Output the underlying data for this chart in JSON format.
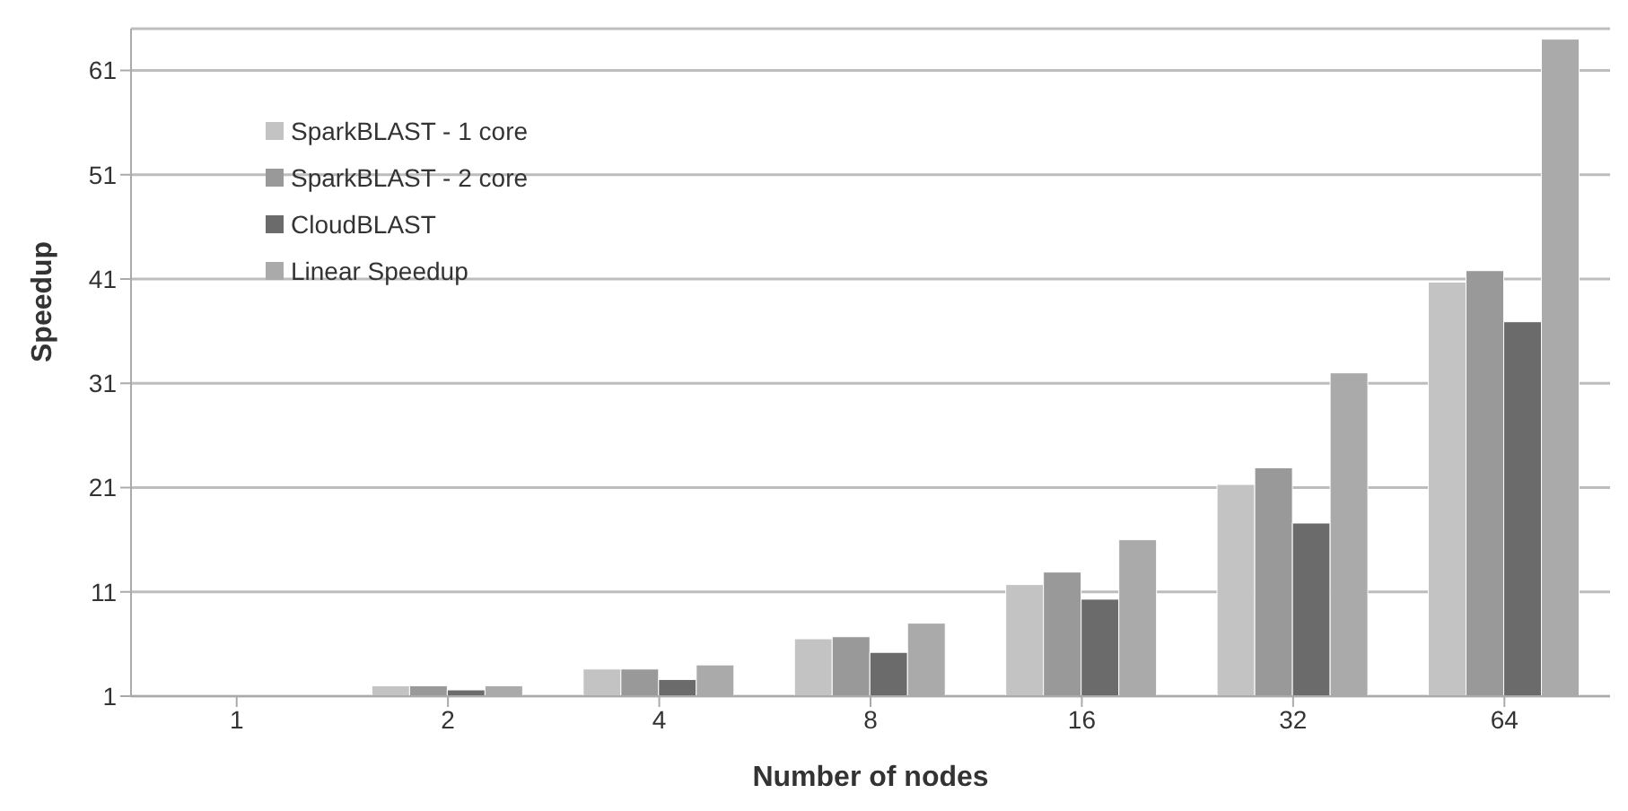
{
  "chart_data": {
    "type": "bar",
    "xlabel": "Number of nodes",
    "ylabel": "Speedup",
    "categories": [
      "1",
      "2",
      "4",
      "8",
      "16",
      "32",
      "64"
    ],
    "series": [
      {
        "name": "SparkBLAST - 1 core",
        "color": "#c3c3c3",
        "values": [
          1,
          2,
          3.6,
          6.5,
          11.7,
          21.3,
          40.7
        ]
      },
      {
        "name": "SparkBLAST - 2 core",
        "color": "#999999",
        "values": [
          1,
          2,
          3.6,
          6.7,
          12.9,
          22.9,
          41.8
        ]
      },
      {
        "name": "CloudBLAST",
        "color": "#6b6b6b",
        "values": [
          1,
          1.6,
          2.6,
          5.2,
          10.3,
          17.6,
          36.9
        ]
      },
      {
        "name": "Linear Speedup",
        "color": "#aaaaaa",
        "values": [
          1,
          2,
          4,
          8,
          16,
          32,
          64
        ]
      }
    ],
    "ylim": [
      1,
      65
    ],
    "yticks": [
      1,
      11,
      21,
      31,
      41,
      51,
      61
    ],
    "grid": "y",
    "legend": "top left"
  }
}
